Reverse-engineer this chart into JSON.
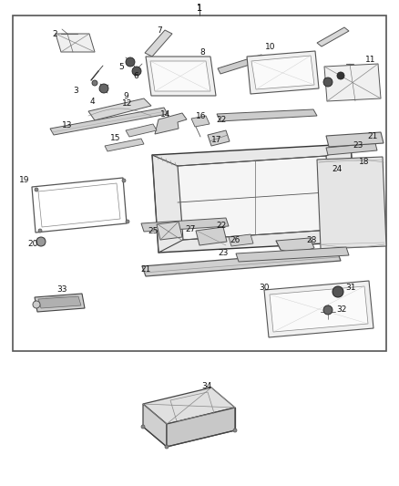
{
  "bg": "#ffffff",
  "fg": "#222222",
  "lc": "#444444",
  "figw": 4.38,
  "figh": 5.33,
  "dpi": 100
}
